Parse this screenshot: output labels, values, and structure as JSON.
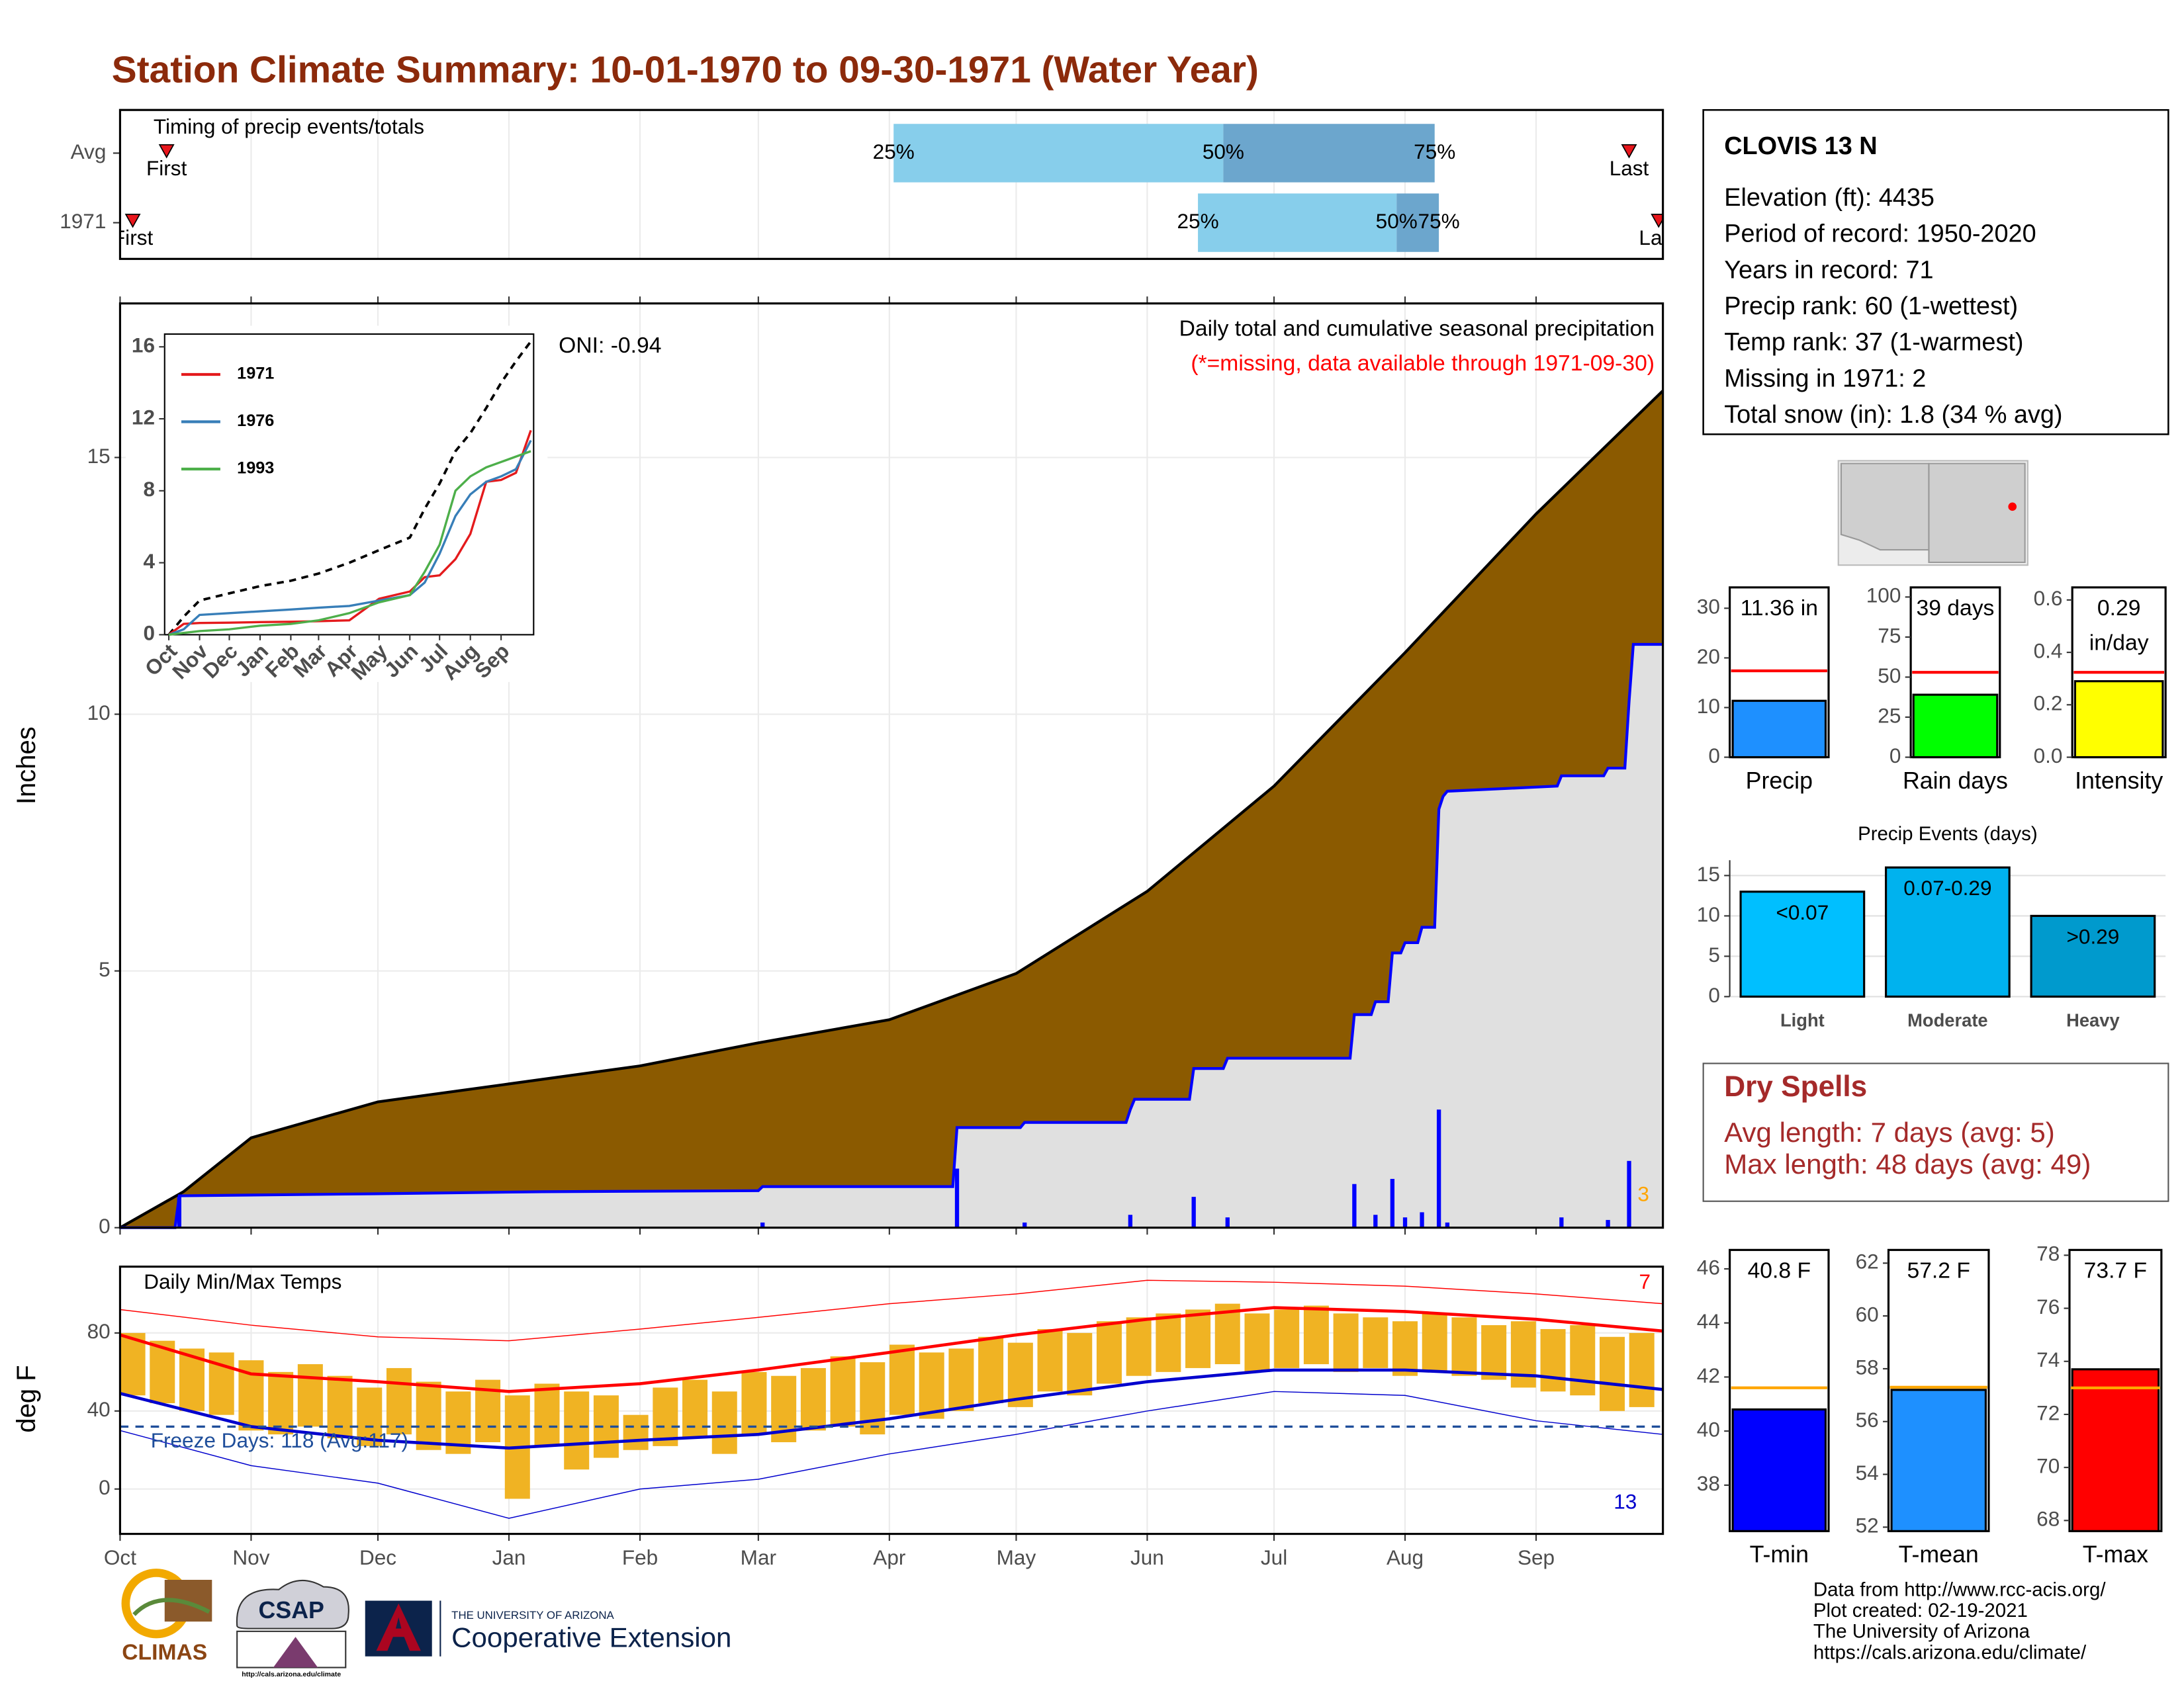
{
  "title": "Station Climate Summary: 10-01-1970 to 09-30-1971 (Water Year)",
  "timing": {
    "title": "Timing of precip events/totals",
    "xlim": [
      0,
      365
    ],
    "first_label": "First",
    "last_label": "Last",
    "quantile_labels": [
      "25%",
      "50%",
      "75%"
    ],
    "colors": [
      "#87ceeb",
      "#6ca6cd"
    ],
    "marker_color": "#e8161c",
    "rows": [
      {
        "name": "Avg",
        "first": 11,
        "quantiles": [
          183,
          261,
          311
        ],
        "last": 357
      },
      {
        "name": "1971",
        "first": 3,
        "quantiles": [
          255,
          302,
          312
        ],
        "last": 364
      }
    ]
  },
  "chart_data": [
    {
      "type": "precip",
      "title": "Daily total and cumulative seasonal precipitation",
      "subtitle": "(*=missing, data available through 1971-09-30)",
      "annotation": "ONI: -0.94",
      "ylabel": "Inches",
      "count_label": "3",
      "count_color": "#ffa500",
      "xlim": [
        0,
        365
      ],
      "xticks": [
        0,
        31,
        61,
        92,
        123,
        151,
        182,
        212,
        243,
        273,
        304,
        335
      ],
      "ylim": [
        0,
        18
      ],
      "yticks": [
        0,
        5,
        10,
        15
      ],
      "grid": true,
      "average": {
        "color": "#8b5a00",
        "x": [
          0,
          15,
          31,
          61,
          92,
          123,
          151,
          182,
          212,
          243,
          273,
          304,
          335,
          365
        ],
        "values": [
          0,
          0.7,
          1.75,
          2.45,
          2.8,
          3.15,
          3.6,
          4.05,
          4.95,
          6.55,
          8.6,
          11.2,
          13.9,
          16.3
        ]
      },
      "cumulative": {
        "color": "#0000ff",
        "fill": "#e0e0e0",
        "x": [
          0,
          13,
          14,
          60,
          100,
          151,
          152,
          197,
          198,
          213,
          214,
          238,
          239,
          240,
          253,
          254,
          261,
          262,
          291,
          292,
          296,
          297,
          300,
          301,
          303,
          304,
          307,
          308,
          311,
          312,
          313,
          314,
          340,
          341,
          351,
          352,
          356,
          357,
          358,
          365
        ],
        "values": [
          0,
          0,
          0.62,
          0.66,
          0.7,
          0.72,
          0.8,
          0.8,
          1.95,
          1.95,
          2.05,
          2.05,
          2.3,
          2.5,
          2.5,
          3.1,
          3.1,
          3.3,
          3.3,
          4.15,
          4.15,
          4.4,
          4.4,
          5.35,
          5.35,
          5.55,
          5.55,
          5.85,
          5.85,
          8.15,
          8.4,
          8.5,
          8.6,
          8.8,
          8.8,
          8.95,
          8.95,
          10.25,
          11.36,
          11.36
        ]
      },
      "daily": {
        "color": "#0000ff",
        "x": [
          14,
          152,
          198,
          214,
          239,
          254,
          262,
          292,
          297,
          301,
          304,
          308,
          312,
          314,
          341,
          352,
          357
        ],
        "values": [
          0.6,
          0.1,
          1.15,
          0.1,
          0.25,
          0.6,
          0.2,
          0.85,
          0.25,
          0.95,
          0.2,
          0.3,
          2.3,
          0.1,
          0.2,
          0.15,
          1.3
        ]
      }
    },
    {
      "type": "line",
      "xlim": [
        0,
        365
      ],
      "ylim": [
        0,
        16.4
      ],
      "yticks": [
        0,
        4,
        8,
        12,
        16
      ],
      "xticks": [
        {
          "value": 0,
          "label": "Oct"
        },
        {
          "value": 31,
          "label": "Nov"
        },
        {
          "value": 61,
          "label": "Dec"
        },
        {
          "value": 92,
          "label": "Jan"
        },
        {
          "value": 123,
          "label": "Feb"
        },
        {
          "value": 151,
          "label": "Mar"
        },
        {
          "value": 182,
          "label": "Apr"
        },
        {
          "value": 212,
          "label": "May"
        },
        {
          "value": 243,
          "label": "Jun"
        },
        {
          "value": 273,
          "label": "Jul"
        },
        {
          "value": 304,
          "label": "Aug"
        },
        {
          "value": 335,
          "label": "Sep"
        }
      ],
      "x": [
        0,
        15,
        31,
        61,
        92,
        123,
        151,
        182,
        212,
        243,
        258,
        273,
        289,
        304,
        320,
        335,
        350,
        365
      ],
      "reference": {
        "color": "#000000",
        "dash": true,
        "values": [
          0,
          1.0,
          1.9,
          2.3,
          2.7,
          3.0,
          3.4,
          4.0,
          4.7,
          5.4,
          7.0,
          8.4,
          10.2,
          11.2,
          12.6,
          14.0,
          15.2,
          16.3
        ]
      },
      "series": [
        {
          "name": "1971",
          "color": "#e41a1c",
          "values": [
            0,
            0.6,
            0.65,
            0.67,
            0.7,
            0.72,
            0.75,
            0.8,
            2.0,
            2.4,
            3.2,
            3.3,
            4.2,
            5.6,
            8.5,
            8.6,
            9.0,
            11.36
          ]
        },
        {
          "name": "1976",
          "color": "#377eb8",
          "values": [
            0,
            0.3,
            1.1,
            1.2,
            1.3,
            1.4,
            1.5,
            1.6,
            1.9,
            2.2,
            2.9,
            4.5,
            6.6,
            7.8,
            8.5,
            8.8,
            9.2,
            10.8
          ]
        },
        {
          "name": "1993",
          "color": "#4daf4a",
          "values": [
            0,
            0.1,
            0.2,
            0.3,
            0.5,
            0.6,
            0.8,
            1.2,
            1.8,
            2.2,
            3.5,
            5.0,
            8.0,
            8.8,
            9.3,
            9.6,
            9.9,
            10.2
          ]
        }
      ]
    },
    {
      "type": "temp",
      "title": "Daily Min/Max Temps",
      "ylabel": "deg F",
      "color": "#f0b323",
      "xlim": [
        0,
        365
      ],
      "ylim": [
        -23,
        114
      ],
      "yticks": [
        0,
        40,
        80
      ],
      "grid": true,
      "xticks": [
        {
          "value": 0,
          "label": "Oct"
        },
        {
          "value": 31,
          "label": "Nov"
        },
        {
          "value": 61,
          "label": "Dec"
        },
        {
          "value": 92,
          "label": "Jan"
        },
        {
          "value": 123,
          "label": "Feb"
        },
        {
          "value": 151,
          "label": "Mar"
        },
        {
          "value": 182,
          "label": "Apr"
        },
        {
          "value": 212,
          "label": "May"
        },
        {
          "value": 243,
          "label": "Jun"
        },
        {
          "value": 273,
          "label": "Jul"
        },
        {
          "value": 304,
          "label": "Aug"
        },
        {
          "value": 335,
          "label": "Sep"
        }
      ],
      "freeze": {
        "value": 32,
        "label": "Freeze Days: 118 (Avg:117)",
        "color": "#1f4e9a"
      },
      "count_high": "7",
      "count_low": "13",
      "x": [
        3,
        10,
        17,
        24,
        31,
        38,
        45,
        52,
        59,
        66,
        73,
        80,
        87,
        94,
        101,
        108,
        115,
        122,
        129,
        136,
        143,
        150,
        157,
        164,
        171,
        178,
        185,
        192,
        199,
        206,
        213,
        220,
        227,
        234,
        241,
        248,
        255,
        262,
        269,
        276,
        283,
        290,
        297,
        304,
        311,
        318,
        325,
        332,
        339,
        346,
        353,
        360
      ],
      "tmax": [
        80,
        76,
        72,
        70,
        66,
        60,
        64,
        58,
        52,
        62,
        55,
        50,
        56,
        48,
        54,
        50,
        48,
        38,
        52,
        56,
        50,
        60,
        58,
        62,
        68,
        65,
        74,
        70,
        72,
        78,
        75,
        82,
        80,
        86,
        88,
        90,
        92,
        95,
        90,
        92,
        94,
        90,
        88,
        86,
        90,
        88,
        84,
        86,
        82,
        84,
        78,
        80
      ],
      "tmin": [
        48,
        44,
        40,
        38,
        30,
        28,
        32,
        26,
        22,
        28,
        20,
        18,
        24,
        -5,
        22,
        10,
        16,
        20,
        22,
        26,
        18,
        28,
        24,
        30,
        32,
        28,
        38,
        36,
        40,
        44,
        42,
        50,
        48,
        54,
        58,
        60,
        62,
        64,
        60,
        62,
        64,
        60,
        62,
        58,
        60,
        58,
        56,
        52,
        50,
        48,
        40,
        42
      ],
      "normals": {
        "x": [
          0,
          31,
          61,
          92,
          123,
          151,
          182,
          212,
          243,
          273,
          304,
          335,
          365
        ],
        "tmax": [
          79,
          59,
          55,
          50,
          54,
          61,
          70,
          79,
          87,
          93,
          91,
          87,
          81
        ],
        "tmin": [
          49,
          32,
          25,
          21,
          25,
          28,
          36,
          46,
          55,
          61,
          61,
          58,
          51
        ],
        "record_tmax": [
          92,
          84,
          78,
          76,
          82,
          88,
          95,
          100,
          107,
          106,
          104,
          100,
          95
        ],
        "record_tmin": [
          30,
          12,
          3,
          -15,
          0,
          5,
          18,
          28,
          40,
          50,
          48,
          35,
          28
        ],
        "max_color": "#ff0000",
        "min_color": "#0000cd"
      }
    },
    {
      "type": "bar",
      "categories": [
        "Precip"
      ],
      "values": [
        11.36
      ],
      "value_labels": [
        "11.36 in"
      ],
      "color": "#1e90ff",
      "average": 17.4,
      "average_color": "#ff0000",
      "ylim": [
        0,
        34.2
      ],
      "yticks": [
        0,
        10,
        20,
        30
      ]
    },
    {
      "type": "bar",
      "categories": [
        "Rain days"
      ],
      "values": [
        39
      ],
      "value_labels": [
        "39 days"
      ],
      "color": "#00ff00",
      "average": 53,
      "average_color": "#ff0000",
      "ylim": [
        0,
        106
      ],
      "yticks": [
        0,
        25,
        50,
        75,
        100
      ]
    },
    {
      "type": "bar",
      "categories": [
        "Intensity"
      ],
      "values": [
        0.29
      ],
      "value_labels": [
        "0.29 in/day"
      ],
      "color": "#ffff00",
      "average": 0.324,
      "average_color": "#ff0000",
      "ylim": [
        0,
        0.648
      ],
      "yticks": [
        {
          "value": 0,
          "label": "0.0"
        },
        0.2,
        0.4,
        0.6
      ]
    },
    {
      "type": "bar",
      "title": "Precip Events (days)",
      "categories": [
        "Light",
        "Moderate",
        "Heavy"
      ],
      "values": [
        13,
        16,
        10
      ],
      "bin_labels": [
        "<0.07",
        "0.07-0.29",
        ">0.29"
      ],
      "colors": [
        "#00bfff",
        "#00b2ee",
        "#009acd"
      ],
      "ylim": [
        0,
        16.9
      ],
      "yticks": [
        0,
        5,
        10,
        15
      ],
      "grid": true
    },
    {
      "type": "bar",
      "categories": [
        "T-min"
      ],
      "values": [
        40.8
      ],
      "value_labels": [
        "40.8 F"
      ],
      "color": "#0000ff",
      "average": 41.6,
      "average_color": "#ffa500",
      "ylim": [
        36.3,
        46.7
      ],
      "yticks": [
        38,
        40,
        42,
        44,
        46
      ]
    },
    {
      "type": "bar",
      "categories": [
        "T-mean"
      ],
      "values": [
        57.2
      ],
      "value_labels": [
        "57.2 F"
      ],
      "color": "#1e90ff",
      "average": 57.3,
      "average_color": "#ffa500",
      "ylim": [
        51.85,
        62.5
      ],
      "yticks": [
        52,
        54,
        56,
        58,
        60,
        62
      ]
    },
    {
      "type": "bar",
      "categories": [
        "T-max"
      ],
      "values": [
        73.7
      ],
      "value_labels": [
        "73.7 F"
      ],
      "color": "#ff0000",
      "average": 73.0,
      "average_color": "#ffa500",
      "ylim": [
        67.6,
        78.2
      ],
      "yticks": [
        68,
        70,
        72,
        74,
        76,
        78
      ]
    }
  ],
  "station": {
    "name": "CLOVIS 13 N",
    "lines": [
      "Elevation (ft): 4435",
      "Period of record: 1950-2020",
      "Years in record: 71",
      "Precip rank: 60 (1-wettest)",
      "Temp rank: 37 (1-warmest)",
      "Missing in 1971: 2",
      "Total snow (in): 1.8 (34 % avg)"
    ]
  },
  "dry_spells": {
    "title": "Dry Spells",
    "lines": [
      "Avg length: 7 days (avg: 5)",
      "Max length: 48 days (avg: 49)"
    ]
  },
  "footer": [
    "Data from http://www.rcc-acis.org/",
    "Plot created: 02-19-2021",
    "The University of Arizona",
    "https://cals.arizona.edu/climate/"
  ],
  "logos": {
    "climas": "CLIMAS",
    "csap": "CSAP",
    "csap_url": "http://cals.arizona.edu/climate",
    "ua": "THE UNIVERSITY OF ARIZONA",
    "coop": "Cooperative Extension"
  }
}
